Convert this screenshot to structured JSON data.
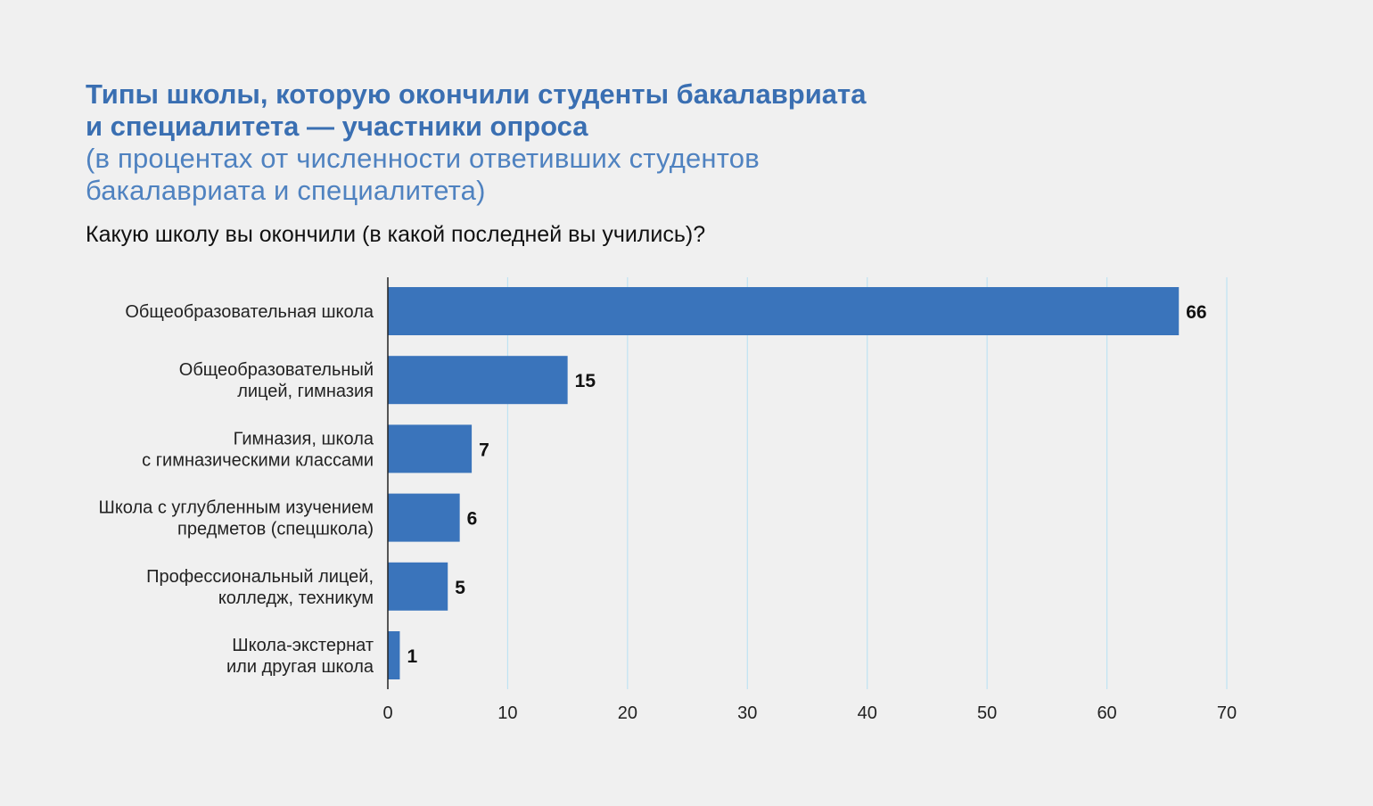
{
  "title_lines": [
    "Типы школы, которую окончили студенты бакалавриата",
    "и специалитета — участники опроса"
  ],
  "subtitle_lines": [
    "(в процентах от численности ответивших студентов",
    "бакалавриата и специалитета)"
  ],
  "question": "Какую школу вы окончили (в какой последней вы учились)?",
  "colors": {
    "bar": "#3a74bb",
    "grid": "#bfe3f3",
    "axis": "#222222",
    "title": "#3a6fb2"
  },
  "chart_data": {
    "type": "bar",
    "orientation": "horizontal",
    "categories": [
      [
        "Общеобразовательная школа"
      ],
      [
        "Общеобразовательный",
        "лицей, гимназия"
      ],
      [
        "Гимназия, школа",
        "с гимназическими классами"
      ],
      [
        "Школа с углубленным изучением",
        "предметов (спецшкола)"
      ],
      [
        "Профессиональный лицей,",
        "колледж, техникум"
      ],
      [
        "Школа-экстернат",
        "или другая школа"
      ]
    ],
    "values": [
      66,
      15,
      7,
      6,
      5,
      1
    ],
    "value_labels": [
      "66",
      "15",
      "7",
      "6",
      "5",
      "1"
    ],
    "xlim": [
      0,
      70
    ],
    "xticks": [
      0,
      10,
      20,
      30,
      40,
      50,
      60,
      70
    ],
    "xtick_labels": [
      "0",
      "10",
      "20",
      "30",
      "40",
      "50",
      "60",
      "70"
    ],
    "grid": true,
    "legend": "none"
  }
}
